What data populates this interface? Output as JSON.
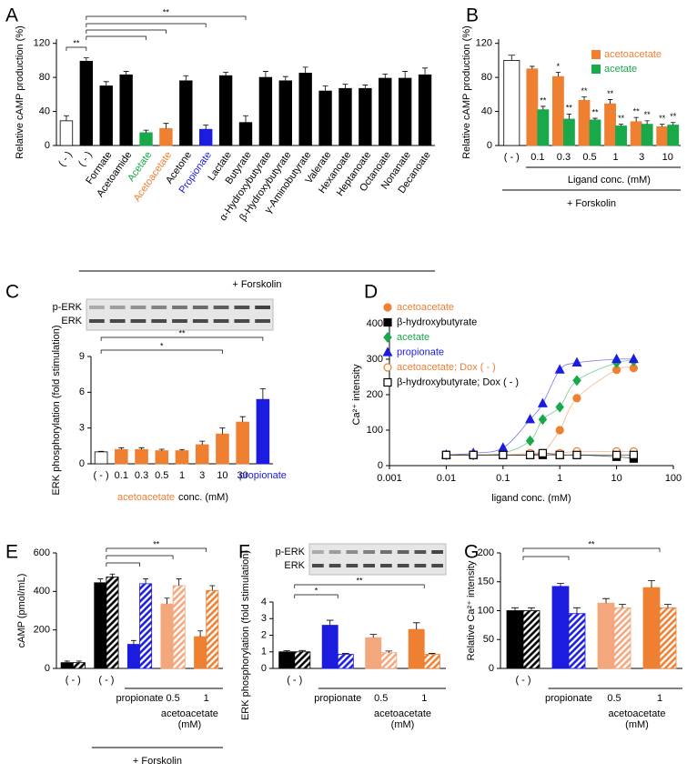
{
  "chart_data": [
    {
      "type": "bar",
      "panel": "A",
      "ylabel": "Relative cAMP production (%)",
      "categories": [
        "( - )",
        "( - )",
        "Formate",
        "Acetoamide",
        "Acetate",
        "Acetoacetate",
        "Acetone",
        "Propionate",
        "Lactate",
        "Butyrate",
        "α-Hydroxybutyrate",
        "β-Hydroxybutyrate",
        "γ-Aminobutyrate",
        "Valerate",
        "Hexanoate",
        "Heptanoate",
        "Octanoate",
        "Nonanate",
        "Decanoate"
      ],
      "values": [
        29,
        99,
        70,
        83,
        15,
        20,
        76,
        19,
        82,
        27,
        80,
        76,
        85,
        64,
        67,
        67,
        79,
        79,
        83
      ],
      "errors": [
        6,
        4,
        5,
        4,
        3,
        6,
        6,
        5,
        4,
        8,
        7,
        5,
        7,
        6,
        5,
        4,
        5,
        8,
        8
      ],
      "colors": [
        "#ffffff",
        "#000000",
        "#000000",
        "#000000",
        "#19a84a",
        "#ef7f31",
        "#000000",
        "#1c1ce0",
        "#000000",
        "#000000",
        "#000000",
        "#000000",
        "#000000",
        "#000000",
        "#000000",
        "#000000",
        "#000000",
        "#000000",
        "#000000"
      ],
      "ylim": [
        0,
        125
      ],
      "yticks": [
        0,
        40,
        80,
        120
      ],
      "brackets": [
        "**",
        "**"
      ],
      "footnote": "+ Forskolin"
    },
    {
      "type": "grouped_bar",
      "panel": "B",
      "ylabel": "Relative cAMP production (%)",
      "categories": [
        "( - )",
        "0.1",
        "0.3",
        "0.5",
        "1",
        "3",
        "10"
      ],
      "control": {
        "value": 100,
        "error": 6,
        "color": "#ffffff"
      },
      "series": [
        {
          "name": "acetoacetate",
          "color": "#ef7f31",
          "values": [
            null,
            90,
            81,
            53,
            49,
            28,
            22
          ],
          "errors": [
            null,
            3,
            5,
            4,
            5,
            5,
            3
          ],
          "stars": [
            null,
            null,
            "*",
            "**",
            "**",
            "**",
            "**"
          ]
        },
        {
          "name": "acetate",
          "color": "#19a84a",
          "values": [
            null,
            42,
            31,
            30,
            23,
            25,
            24
          ],
          "errors": [
            null,
            4,
            6,
            2,
            2,
            4,
            3
          ],
          "stars": [
            null,
            "**",
            "**",
            "**",
            "**",
            "**",
            "**"
          ]
        }
      ],
      "ylim": [
        0,
        125
      ],
      "yticks": [
        0,
        40,
        80,
        120
      ],
      "legend": "upper right",
      "xlabel": "Ligand conc. (mM)",
      "footnote": "+ Forskolin"
    },
    {
      "type": "bar",
      "panel": "C",
      "blot_labels": [
        "p-ERK",
        "ERK"
      ],
      "ylabel": "ERK phosphorylation (fold stimulation)",
      "categories": [
        "( - )",
        "0.1",
        "0.3",
        "0.5",
        "1",
        "3",
        "10",
        "30",
        "propionate"
      ],
      "values": [
        1,
        1.2,
        1.2,
        1.1,
        1.1,
        1.6,
        2.5,
        3.5,
        5.4
      ],
      "errors": [
        0.05,
        0.15,
        0.15,
        0.12,
        0.1,
        0.3,
        0.5,
        0.45,
        0.9
      ],
      "colors": [
        "#ffffff",
        "#ef7f31",
        "#ef7f31",
        "#ef7f31",
        "#ef7f31",
        "#ef7f31",
        "#ef7f31",
        "#ef7f31",
        "#1c1ce0"
      ],
      "label_colors": [
        "#000000",
        "#000000",
        "#000000",
        "#000000",
        "#000000",
        "#000000",
        "#000000",
        "#000000",
        "#1c1ce0"
      ],
      "ylim": [
        0,
        9
      ],
      "yticks": [
        0,
        3,
        6,
        9
      ],
      "xlabel_parts": [
        {
          "text": "acetoacetate",
          "color": "#ef7f31"
        },
        {
          "text": "conc. (mM)",
          "color": "#000000"
        }
      ],
      "brackets": [
        "*",
        "**"
      ]
    },
    {
      "type": "scatter",
      "panel": "D",
      "xscale": "log",
      "xlabel": "ligand conc. (mM)",
      "ylabel": "Ca²⁺ intensity",
      "xlim": [
        0.001,
        100
      ],
      "xticks": [
        0.001,
        0.01,
        0.1,
        1,
        10,
        100
      ],
      "ylim": [
        0,
        400
      ],
      "yticks": [
        0,
        100,
        200,
        300,
        400
      ],
      "x": [
        0.01,
        0.03,
        0.1,
        0.3,
        0.5,
        1,
        2,
        10,
        20
      ],
      "legend": "upper left",
      "series": [
        {
          "name": "acetoacetate",
          "color": "#ef7f31",
          "marker": "circle",
          "filled": true,
          "values": [
            30,
            30,
            30,
            30,
            35,
            100,
            190,
            270,
            275
          ]
        },
        {
          "name": "β-hydroxybutyrate",
          "color": "#000000",
          "marker": "square",
          "filled": true,
          "values": [
            30,
            30,
            30,
            30,
            30,
            30,
            30,
            25,
            20
          ]
        },
        {
          "name": "acetate",
          "color": "#19a84a",
          "marker": "diamond",
          "filled": true,
          "values": [
            30,
            30,
            35,
            70,
            130,
            165,
            240,
            290,
            295
          ]
        },
        {
          "name": "propionate",
          "color": "#1c1ce0",
          "marker": "triangle",
          "filled": true,
          "values": [
            30,
            35,
            50,
            130,
            175,
            270,
            290,
            300,
            300
          ]
        },
        {
          "name": "acetoacetate; Dox ( - )",
          "color": "#ef7f31",
          "marker": "circle",
          "filled": false,
          "values": [
            30,
            30,
            30,
            35,
            35,
            35,
            40,
            40,
            40
          ]
        },
        {
          "name": "β-hydroxybutyrate; Dox ( - )",
          "color": "#000000",
          "marker": "square",
          "filled": false,
          "values": [
            30,
            30,
            30,
            30,
            35,
            30,
            30,
            30,
            30
          ]
        }
      ]
    },
    {
      "type": "paired_bar",
      "panel": "E",
      "ylabel": "cAMP (pmol/mL)",
      "categories": [
        "( - )",
        "( - )",
        "propionate",
        "0.5",
        "1"
      ],
      "group_label": [
        "acetoacetate",
        "(mM)"
      ],
      "colors": [
        "#000000",
        "#000000",
        "#1c1ce0",
        "#f4a77c",
        "#ef7f31"
      ],
      "solid": [
        30,
        445,
        125,
        335,
        165
      ],
      "solid_errors": [
        8,
        20,
        20,
        30,
        30
      ],
      "hatched": [
        30,
        475,
        440,
        430,
        405
      ],
      "hatched_errors": [
        8,
        15,
        25,
        35,
        25
      ],
      "ylim": [
        0,
        600
      ],
      "yticks": [
        0,
        200,
        400,
        600
      ],
      "brackets": [
        "**"
      ],
      "footnote": "+ Forskolin"
    },
    {
      "type": "paired_bar",
      "panel": "F",
      "blot_labels": [
        "p-ERK",
        "ERK"
      ],
      "ylabel": "ERK phosphorylation (fold stimulation)",
      "categories": [
        "( - )",
        "propionate",
        "0.5",
        "1"
      ],
      "group_label": [
        "acetoacetate",
        "(mM)"
      ],
      "colors": [
        "#000000",
        "#1c1ce0",
        "#f4a77c",
        "#ef7f31"
      ],
      "solid": [
        1,
        2.6,
        1.85,
        2.35
      ],
      "solid_errors": [
        0.07,
        0.3,
        0.2,
        0.4
      ],
      "hatched": [
        1,
        0.85,
        0.95,
        0.85
      ],
      "hatched_errors": [
        0.08,
        0.05,
        0.1,
        0.05
      ],
      "ylim": [
        0,
        4
      ],
      "yticks": [
        0,
        1,
        2,
        3,
        4
      ],
      "brackets": [
        "*",
        "**"
      ]
    },
    {
      "type": "paired_bar",
      "panel": "G",
      "ylabel": "Relative Ca²⁺ intensity",
      "categories": [
        "( - )",
        "propionate",
        "0.5",
        "1"
      ],
      "group_label": [
        "acetoacetate",
        "(mM)"
      ],
      "colors": [
        "#000000",
        "#1c1ce0",
        "#f4a77c",
        "#ef7f31"
      ],
      "solid": [
        100,
        142,
        113,
        140
      ],
      "solid_errors": [
        5,
        5,
        8,
        12
      ],
      "hatched": [
        100,
        95,
        105,
        105
      ],
      "hatched_errors": [
        5,
        10,
        6,
        6
      ],
      "ylim": [
        0,
        200
      ],
      "yticks": [
        0,
        50,
        100,
        150,
        200
      ],
      "brackets": [
        "**"
      ]
    }
  ]
}
